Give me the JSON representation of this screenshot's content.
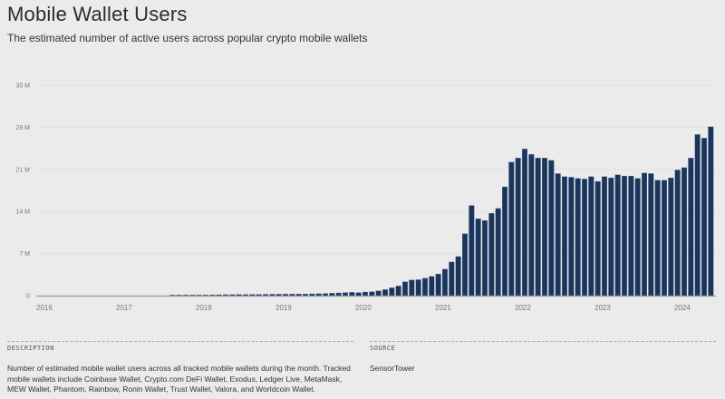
{
  "header": {
    "title": "Mobile Wallet Users",
    "subtitle": "The estimated number of active users across popular crypto mobile wallets"
  },
  "chart_data": {
    "type": "bar",
    "title": "Mobile Wallet Users",
    "subtitle": "The estimated number of active users across popular crypto mobile wallets",
    "xlabel": "",
    "ylabel": "",
    "unit": "M",
    "ylim": [
      0,
      35
    ],
    "yticks": [
      0,
      7,
      14,
      21,
      28,
      35
    ],
    "ytick_labels": [
      "0",
      "7 M",
      "14 M",
      "21 M",
      "28 M",
      "35 M"
    ],
    "xticks": [
      "2016",
      "2017",
      "2018",
      "2019",
      "2020",
      "2021",
      "2022",
      "2023",
      "2024"
    ],
    "x_start": "2016-01",
    "grid": true,
    "bar_color": "#1b365d",
    "first_bar_month": "2017-09",
    "series": [
      {
        "name": "Mobile wallet users (M)",
        "values": [
          0.1,
          0.1,
          0.1,
          0.1,
          0.12,
          0.13,
          0.14,
          0.15,
          0.16,
          0.17,
          0.18,
          0.19,
          0.2,
          0.21,
          0.22,
          0.23,
          0.24,
          0.25,
          0.26,
          0.27,
          0.28,
          0.3,
          0.32,
          0.35,
          0.4,
          0.45,
          0.5,
          0.55,
          0.5,
          0.6,
          0.65,
          0.8,
          1.0,
          1.3,
          1.6,
          2.3,
          2.6,
          2.65,
          2.9,
          3.2,
          3.6,
          4.4,
          5.6,
          6.5,
          10.3,
          15.0,
          12.8,
          12.5,
          13.7,
          14.5,
          18.1,
          22.2,
          22.9,
          24.4,
          23.5,
          22.9,
          22.9,
          22.5,
          20.3,
          19.8,
          19.7,
          19.5,
          19.4,
          19.8,
          19.0,
          19.8,
          19.6,
          20.1,
          19.9,
          19.9,
          19.5,
          20.4,
          20.3,
          19.2,
          19.2,
          19.6,
          20.9,
          21.3,
          22.9,
          26.8,
          26.2,
          28.1
        ]
      }
    ]
  },
  "footer": {
    "description_label": "DESCRIPTION",
    "description_text": "Number of estimated mobile wallet users across all tracked mobile wallets during the month. Tracked mobile wallets include Coinbase Wallet, Crypto.com DeFi Wallet, Exodus, Ledger Live, MetaMask, MEW Wallet, Phantom, Rainbow, Ronin Wallet, Trust Wallet, Valora, and Worldcoin Wallet.",
    "source_label": "SOURCE",
    "source_text": "SensorTower"
  }
}
